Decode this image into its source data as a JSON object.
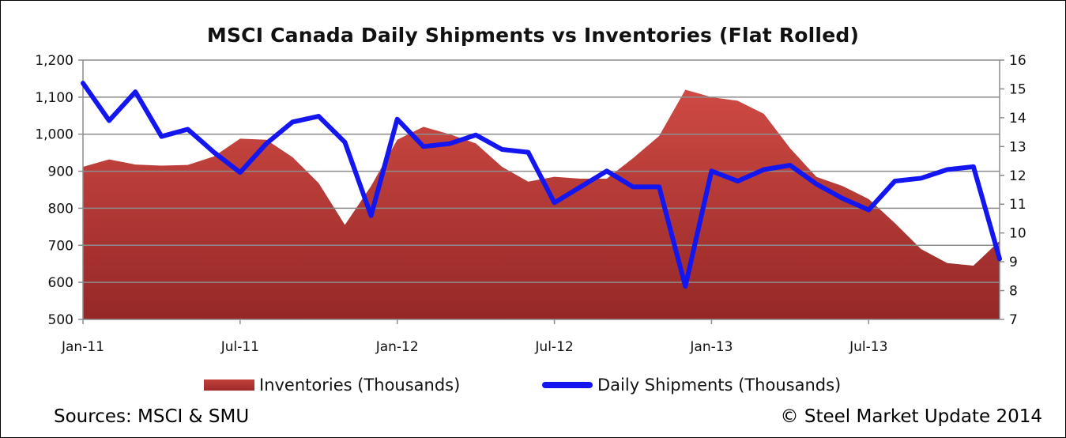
{
  "chart_data": {
    "type": "area+line",
    "title": "MSCI  Canada Daily Shipments vs Inventories (Flat Rolled)",
    "x": [
      "Jan-11",
      "Feb-11",
      "Mar-11",
      "Apr-11",
      "May-11",
      "Jun-11",
      "Jul-11",
      "Aug-11",
      "Sep-11",
      "Oct-11",
      "Nov-11",
      "Dec-11",
      "Jan-12",
      "Feb-12",
      "Mar-12",
      "Apr-12",
      "May-12",
      "Jun-12",
      "Jul-12",
      "Aug-12",
      "Sep-12",
      "Oct-12",
      "Nov-12",
      "Dec-12",
      "Jan-13",
      "Feb-13",
      "Mar-13",
      "Apr-13",
      "May-13",
      "Jun-13",
      "Jul-13",
      "Aug-13",
      "Sep-13",
      "Oct-13",
      "Nov-13",
      "Dec-13"
    ],
    "x_tick_labels": [
      "Jan-11",
      "Jul-11",
      "Jan-12",
      "Jul-12",
      "Jan-13",
      "Jul-13"
    ],
    "y_left": {
      "ylim": [
        500,
        1200
      ],
      "ticks": [
        "500",
        "600",
        "700",
        "800",
        "900",
        "1,000",
        "1,100",
        "1,200"
      ]
    },
    "y_right": {
      "ylim": [
        7,
        16
      ],
      "ticks": [
        "7",
        "8",
        "9",
        "10",
        "11",
        "12",
        "13",
        "14",
        "15",
        "16"
      ]
    },
    "grid": true,
    "legend_position": "bottom",
    "series": [
      {
        "name": "Inventories (Thousands)",
        "type": "area",
        "axis": "left",
        "color": "#b3302f",
        "values": [
          912,
          932,
          918,
          915,
          917,
          940,
          988,
          985,
          938,
          868,
          755,
          860,
          985,
          1020,
          1000,
          975,
          912,
          872,
          885,
          880,
          880,
          935,
          995,
          1120,
          1100,
          1090,
          1055,
          962,
          885,
          860,
          825,
          760,
          690,
          652,
          645,
          712
        ]
      },
      {
        "name": "Daily Shipments (Thousands)",
        "type": "line",
        "axis": "right",
        "color": "#1416f0",
        "values": [
          15.2,
          13.9,
          14.9,
          13.35,
          13.6,
          12.8,
          12.1,
          13.1,
          13.85,
          14.05,
          13.15,
          10.6,
          13.95,
          13.0,
          13.1,
          13.4,
          12.9,
          12.8,
          11.05,
          11.6,
          12.15,
          11.6,
          11.6,
          8.15,
          12.15,
          11.8,
          12.2,
          12.35,
          11.7,
          11.2,
          10.8,
          11.8,
          11.9,
          12.2,
          12.3,
          9.1
        ]
      }
    ]
  },
  "footer": {
    "sources": "Sources: MSCI & SMU",
    "copyright": "© Steel Market Update 2014"
  }
}
